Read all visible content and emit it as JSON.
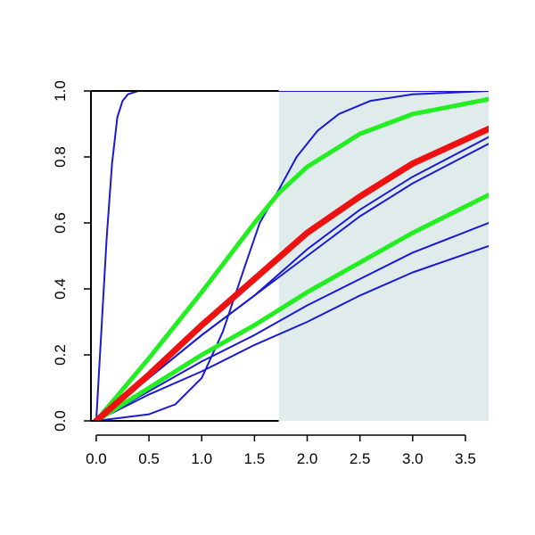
{
  "chart_data": {
    "type": "line",
    "title": "",
    "xlabel": "",
    "ylabel": "",
    "xlim": [
      -0.05,
      3.72
    ],
    "ylim": [
      0,
      1
    ],
    "x_ticks": [
      "0.0",
      "0.5",
      "1.0",
      "1.5",
      "2.0",
      "2.5",
      "3.0",
      "3.5"
    ],
    "y_ticks": [
      "0.0",
      "0.2",
      "0.4",
      "0.6",
      "0.8",
      "1.0"
    ],
    "shaded_region": {
      "x_from": 1.73,
      "x_to": 3.72,
      "color": "#e0ecec"
    },
    "colors": {
      "blue": "#1a1ad0",
      "green": "#22ee22",
      "red": "#ee1111",
      "axis": "#000000"
    },
    "series": [
      {
        "color": "#1a1ad0",
        "width": 2,
        "points": [
          [
            0,
            0
          ],
          [
            0.05,
            0.28
          ],
          [
            0.1,
            0.56
          ],
          [
            0.15,
            0.78
          ],
          [
            0.2,
            0.92
          ],
          [
            0.25,
            0.97
          ],
          [
            0.3,
            0.99
          ],
          [
            0.4,
            1.0
          ],
          [
            3.72,
            1.0
          ]
        ]
      },
      {
        "color": "#1a1ad0",
        "width": 2,
        "points": [
          [
            0,
            0
          ],
          [
            0.5,
            0.02
          ],
          [
            0.75,
            0.05
          ],
          [
            1.0,
            0.13
          ],
          [
            1.2,
            0.27
          ],
          [
            1.4,
            0.46
          ],
          [
            1.55,
            0.6
          ],
          [
            1.73,
            0.7
          ],
          [
            1.9,
            0.8
          ],
          [
            2.1,
            0.88
          ],
          [
            2.3,
            0.93
          ],
          [
            2.6,
            0.97
          ],
          [
            3.0,
            0.99
          ],
          [
            3.72,
            1.0
          ]
        ]
      },
      {
        "color": "#1a1ad0",
        "width": 2,
        "points": [
          [
            0,
            0
          ],
          [
            0.5,
            0.13
          ],
          [
            1.0,
            0.26
          ],
          [
            1.5,
            0.38
          ],
          [
            2.0,
            0.52
          ],
          [
            2.5,
            0.64
          ],
          [
            3.0,
            0.74
          ],
          [
            3.72,
            0.86
          ]
        ]
      },
      {
        "color": "#1a1ad0",
        "width": 2,
        "points": [
          [
            0,
            0
          ],
          [
            0.5,
            0.13
          ],
          [
            1.0,
            0.26
          ],
          [
            1.5,
            0.38
          ],
          [
            2.0,
            0.5
          ],
          [
            2.5,
            0.62
          ],
          [
            3.0,
            0.72
          ],
          [
            3.72,
            0.84
          ]
        ]
      },
      {
        "color": "#1a1ad0",
        "width": 2,
        "points": [
          [
            0,
            0
          ],
          [
            0.5,
            0.09
          ],
          [
            1.0,
            0.18
          ],
          [
            1.5,
            0.26
          ],
          [
            2.0,
            0.35
          ],
          [
            2.5,
            0.43
          ],
          [
            3.0,
            0.51
          ],
          [
            3.72,
            0.6
          ]
        ]
      },
      {
        "color": "#1a1ad0",
        "width": 2,
        "points": [
          [
            0,
            0
          ],
          [
            0.5,
            0.08
          ],
          [
            1.0,
            0.15
          ],
          [
            1.5,
            0.23
          ],
          [
            2.0,
            0.3
          ],
          [
            2.5,
            0.38
          ],
          [
            3.0,
            0.45
          ],
          [
            3.72,
            0.53
          ]
        ]
      },
      {
        "color": "#22ee22",
        "width": 5,
        "points": [
          [
            0,
            0
          ],
          [
            0.5,
            0.19
          ],
          [
            1.0,
            0.39
          ],
          [
            1.5,
            0.6
          ],
          [
            1.73,
            0.69
          ],
          [
            2.0,
            0.77
          ],
          [
            2.5,
            0.87
          ],
          [
            3.0,
            0.93
          ],
          [
            3.72,
            0.975
          ]
        ]
      },
      {
        "color": "#22ee22",
        "width": 5,
        "points": [
          [
            0,
            0
          ],
          [
            0.5,
            0.1
          ],
          [
            1.0,
            0.2
          ],
          [
            1.5,
            0.29
          ],
          [
            2.0,
            0.39
          ],
          [
            2.5,
            0.48
          ],
          [
            3.0,
            0.57
          ],
          [
            3.72,
            0.685
          ]
        ]
      },
      {
        "color": "#ee1111",
        "width": 7,
        "points": [
          [
            0,
            0
          ],
          [
            0.5,
            0.14
          ],
          [
            1.0,
            0.29
          ],
          [
            1.5,
            0.43
          ],
          [
            2.0,
            0.57
          ],
          [
            2.5,
            0.68
          ],
          [
            3.0,
            0.78
          ],
          [
            3.72,
            0.885
          ]
        ]
      }
    ]
  }
}
